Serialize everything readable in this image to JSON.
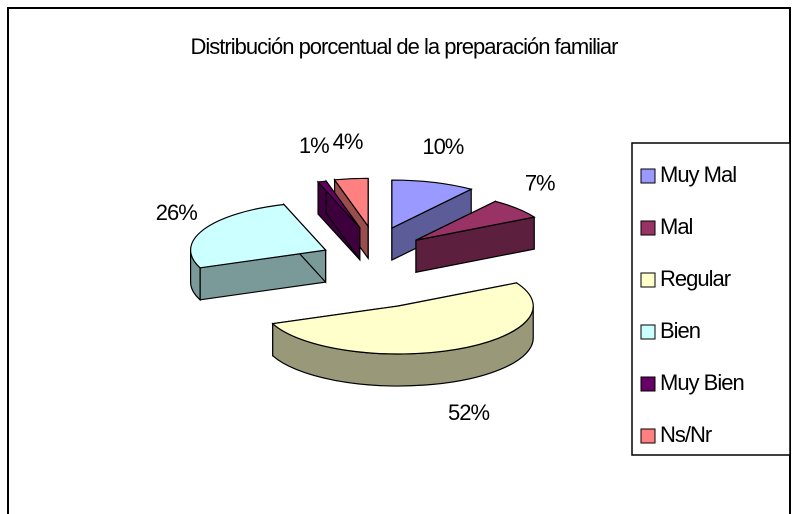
{
  "chart_data": {
    "type": "pie3d",
    "title": "Distribución porcentual de la preparación familiar",
    "categories": [
      "Muy Mal",
      "Mal",
      "Regular",
      "Bien",
      "Muy Bien",
      "Ns/Nr"
    ],
    "values": [
      10,
      7,
      52,
      26,
      1,
      4
    ],
    "value_labels": [
      "10%",
      "7%",
      "52%",
      "26%",
      "1%",
      "4%"
    ],
    "colors": [
      "#9999ff",
      "#993366",
      "#ffffcc",
      "#ccffff",
      "#660066",
      "#ff8080"
    ],
    "legend": "right"
  }
}
